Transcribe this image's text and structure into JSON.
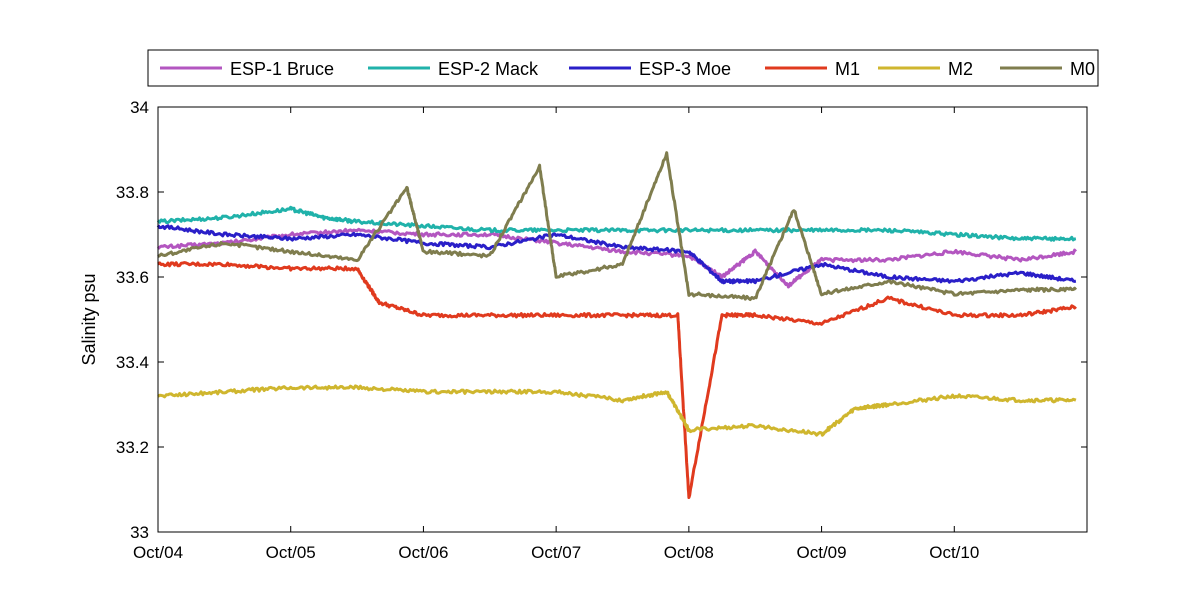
{
  "chart_data": {
    "type": "line",
    "title": "",
    "xlabel": "",
    "ylabel": "Salinity psu",
    "xlim": [
      "Oct/04",
      "Oct/11"
    ],
    "ylim": [
      33,
      34
    ],
    "x_ticks": [
      "Oct/04",
      "Oct/05",
      "Oct/06",
      "Oct/07",
      "Oct/08",
      "Oct/09",
      "Oct/10"
    ],
    "y_ticks": [
      "33",
      "33.2",
      "33.4",
      "33.6",
      "33.8",
      "34"
    ],
    "grid": false,
    "legend_position": "top",
    "series": [
      {
        "name": "ESP-1 Bruce",
        "color": "#b356c0",
        "x": [
          "Oct/04 00:00",
          "Oct/04 12:00",
          "Oct/05 00:00",
          "Oct/05 12:00",
          "Oct/06 00:00",
          "Oct/06 12:00",
          "Oct/07 00:00",
          "Oct/07 12:00",
          "Oct/08 00:00",
          "Oct/08 06:00",
          "Oct/08 12:00",
          "Oct/08 18:00",
          "Oct/09 00:00",
          "Oct/09 12:00",
          "Oct/10 00:00",
          "Oct/10 12:00",
          "Oct/10 22:00"
        ],
        "values": [
          33.67,
          33.68,
          33.7,
          33.71,
          33.7,
          33.7,
          33.68,
          33.66,
          33.65,
          33.6,
          33.66,
          33.58,
          33.64,
          33.64,
          33.66,
          33.64,
          33.66
        ]
      },
      {
        "name": "ESP-2 Mack",
        "color": "#20b2aa",
        "x": [
          "Oct/04 00:00",
          "Oct/04 12:00",
          "Oct/05 00:00",
          "Oct/05 06:00",
          "Oct/05 12:00",
          "Oct/06 00:00",
          "Oct/06 12:00",
          "Oct/07 00:00",
          "Oct/07 12:00",
          "Oct/08 00:00",
          "Oct/08 12:00",
          "Oct/09 00:00",
          "Oct/09 12:00",
          "Oct/10 00:00",
          "Oct/10 12:00",
          "Oct/10 22:00"
        ],
        "values": [
          33.73,
          33.74,
          33.76,
          33.74,
          33.73,
          33.72,
          33.71,
          33.71,
          33.71,
          33.71,
          33.71,
          33.71,
          33.71,
          33.7,
          33.69,
          33.69
        ]
      },
      {
        "name": "ESP-3 Moe",
        "color": "#2a1fc8",
        "x": [
          "Oct/04 00:00",
          "Oct/04 12:00",
          "Oct/05 00:00",
          "Oct/05 12:00",
          "Oct/06 00:00",
          "Oct/06 12:00",
          "Oct/07 00:00",
          "Oct/07 12:00",
          "Oct/08 00:00",
          "Oct/08 06:00",
          "Oct/08 12:00",
          "Oct/09 00:00",
          "Oct/09 12:00",
          "Oct/10 00:00",
          "Oct/10 12:00",
          "Oct/10 22:00"
        ],
        "values": [
          33.72,
          33.7,
          33.69,
          33.7,
          33.68,
          33.67,
          33.7,
          33.67,
          33.66,
          33.59,
          33.59,
          33.63,
          33.6,
          33.59,
          33.61,
          33.59
        ]
      },
      {
        "name": "M1",
        "color": "#e03a1e",
        "x": [
          "Oct/04 00:00",
          "Oct/04 12:00",
          "Oct/05 00:00",
          "Oct/05 12:00",
          "Oct/05 16:00",
          "Oct/06 00:00",
          "Oct/06 12:00",
          "Oct/07 00:00",
          "Oct/07 12:00",
          "Oct/07 22:00",
          "Oct/08 00:00",
          "Oct/08 06:00",
          "Oct/08 12:00",
          "Oct/09 00:00",
          "Oct/09 12:00",
          "Oct/10 00:00",
          "Oct/10 12:00",
          "Oct/10 22:00"
        ],
        "values": [
          33.63,
          33.63,
          33.62,
          33.62,
          33.54,
          33.51,
          33.51,
          33.51,
          33.51,
          33.51,
          33.08,
          33.51,
          33.51,
          33.49,
          33.55,
          33.51,
          33.51,
          33.53
        ]
      },
      {
        "name": "M2",
        "color": "#cfb62e",
        "x": [
          "Oct/04 00:00",
          "Oct/04 12:00",
          "Oct/05 00:00",
          "Oct/05 12:00",
          "Oct/06 00:00",
          "Oct/06 12:00",
          "Oct/07 00:00",
          "Oct/07 12:00",
          "Oct/07 20:00",
          "Oct/08 00:00",
          "Oct/08 12:00",
          "Oct/09 00:00",
          "Oct/09 06:00",
          "Oct/09 12:00",
          "Oct/10 00:00",
          "Oct/10 12:00",
          "Oct/10 22:00"
        ],
        "values": [
          33.32,
          33.33,
          33.34,
          33.34,
          33.33,
          33.33,
          33.33,
          33.31,
          33.33,
          33.24,
          33.25,
          33.23,
          33.29,
          33.3,
          33.32,
          33.31,
          33.31
        ]
      },
      {
        "name": "M0",
        "color": "#7f7d4e",
        "x": [
          "Oct/04 00:00",
          "Oct/04 12:00",
          "Oct/05 00:00",
          "Oct/05 12:00",
          "Oct/05 21:00",
          "Oct/06 00:00",
          "Oct/06 12:00",
          "Oct/06 21:00",
          "Oct/07 00:00",
          "Oct/07 12:00",
          "Oct/07 20:00",
          "Oct/08 00:00",
          "Oct/08 12:00",
          "Oct/08 19:00",
          "Oct/09 00:00",
          "Oct/09 12:00",
          "Oct/10 00:00",
          "Oct/10 12:00",
          "Oct/10 22:00"
        ],
        "values": [
          33.65,
          33.68,
          33.66,
          33.64,
          33.81,
          33.66,
          33.65,
          33.86,
          33.6,
          33.63,
          33.89,
          33.56,
          33.55,
          33.76,
          33.56,
          33.59,
          33.56,
          33.57,
          33.57
        ]
      }
    ]
  }
}
